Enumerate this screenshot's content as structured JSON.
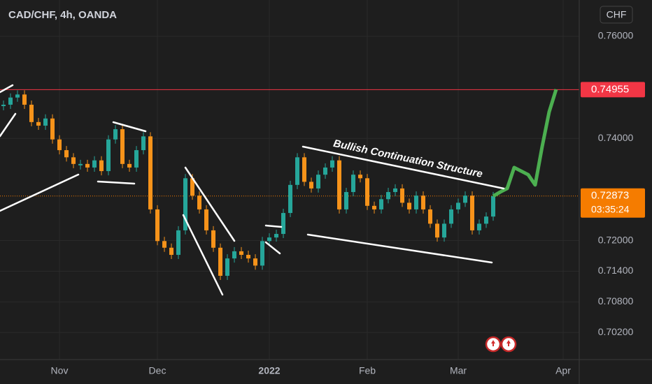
{
  "chart_data": {
    "type": "candlestick",
    "title": "CAD/CHF, 4h, OANDA",
    "currency": "CHF",
    "annotation": "Bullish Continuation Structure",
    "categories": [
      null,
      null,
      null,
      null,
      null,
      null,
      null,
      null,
      "Nov",
      null,
      null,
      null,
      null,
      null,
      null,
      null,
      null,
      null,
      null,
      null,
      null,
      null,
      "Dec",
      null,
      null,
      null,
      null,
      null,
      null,
      null,
      null,
      null,
      null,
      null,
      null,
      null,
      null,
      null,
      "2022",
      null,
      null,
      null,
      null,
      null,
      null,
      null,
      null,
      null,
      null,
      null,
      null,
      null,
      "Feb",
      null,
      null,
      null,
      null,
      null,
      null,
      null,
      null,
      null,
      null,
      null,
      null,
      "Mar",
      null,
      null,
      null,
      null,
      null,
      null,
      null,
      null,
      null,
      null,
      null,
      null,
      null,
      null,
      "Apr"
    ],
    "series": [
      {
        "color": "#26a69a",
        "down_color": "#f7931a",
        "values": [
          0.7466,
          0.748,
          0.7486,
          0.7466,
          0.7432,
          0.7425,
          0.7439,
          0.7398,
          0.7377,
          0.7363,
          0.735,
          0.735,
          0.7343,
          0.7357,
          0.7336,
          0.7398,
          0.7418,
          0.735,
          0.7343,
          0.7377,
          0.7404,
          0.7261,
          0.7199,
          0.7186,
          0.7172,
          0.722,
          0.7322,
          0.7288,
          0.7261,
          0.722,
          0.7186,
          0.7131,
          0.7165,
          0.7179,
          0.7172,
          0.7165,
          0.7151,
          0.7199,
          0.7206,
          0.7213,
          0.7254,
          0.7309,
          0.7363,
          0.7315,
          0.7302,
          0.7329,
          0.7343,
          0.7357,
          0.7261,
          0.7295,
          0.7329,
          0.7322,
          0.7268,
          0.7261,
          0.7281,
          0.7295,
          0.7302,
          0.7274,
          0.7261,
          0.7288,
          0.7261,
          0.7233,
          0.7206,
          0.7233,
          0.7261,
          0.7274,
          0.7288,
          0.722,
          0.7233,
          0.7247,
          0.7287,
          null,
          null,
          null,
          null,
          null,
          null,
          null,
          null,
          null,
          null
        ]
      },
      {
        "color": "#4caf50",
        "values": [
          null,
          null,
          null,
          null,
          null,
          null,
          null,
          null,
          null,
          null,
          null,
          null,
          null,
          null,
          null,
          null,
          null,
          null,
          null,
          null,
          null,
          null,
          null,
          null,
          null,
          null,
          null,
          null,
          null,
          null,
          null,
          null,
          null,
          null,
          null,
          null,
          null,
          null,
          null,
          null,
          null,
          null,
          null,
          null,
          null,
          null,
          null,
          null,
          null,
          null,
          null,
          null,
          null,
          null,
          null,
          null,
          null,
          null,
          null,
          null,
          null,
          null,
          null,
          null,
          null,
          null,
          null,
          null,
          null,
          null,
          0.7287,
          0.7295,
          0.7302,
          0.7343,
          0.7336,
          0.7329,
          0.7309,
          0.7384,
          0.7452,
          0.7496,
          null
        ]
      }
    ],
    "price_lines": [
      {
        "value": 0.74955,
        "color": "#f23645",
        "style": "solid"
      },
      {
        "value": 0.72873,
        "color": "#f57c00",
        "style": "dotted",
        "countdown": "03:35:24"
      }
    ],
    "ylim": [
      0.6967,
      0.7671
    ],
    "yticks": [
      {
        "value": 0.76,
        "label": "0.76000"
      },
      {
        "value": 0.74,
        "label": "0.74000"
      },
      {
        "value": 0.72,
        "label": "0.72000"
      },
      {
        "value": 0.714,
        "label": "0.71400"
      },
      {
        "value": 0.708,
        "label": "0.70800"
      },
      {
        "value": 0.702,
        "label": "0.70200"
      }
    ],
    "grid": true
  }
}
